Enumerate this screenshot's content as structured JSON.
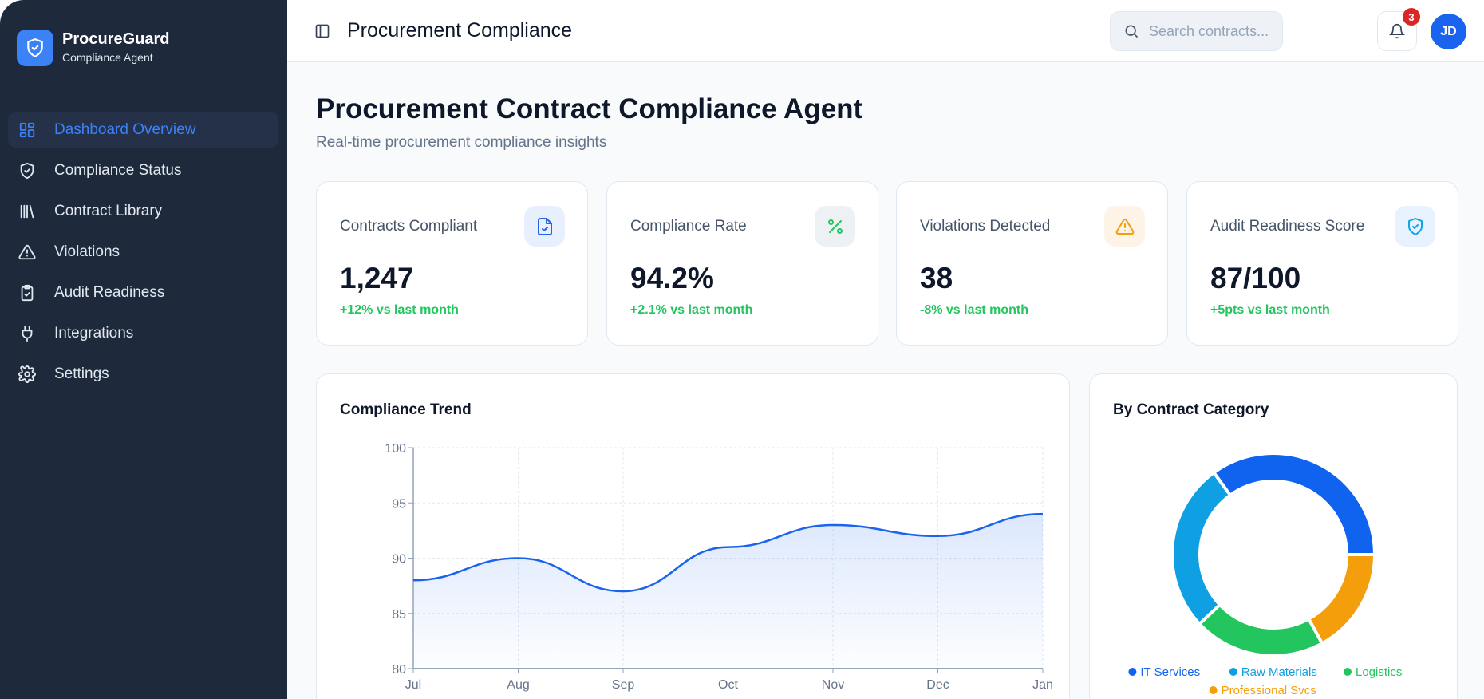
{
  "sidebar": {
    "brand": "ProcureGuard",
    "brand_sub": "Compliance Agent",
    "items": [
      {
        "label": "Dashboard Overview",
        "icon": "dashboard-icon",
        "active": true
      },
      {
        "label": "Compliance Status",
        "icon": "shield-check-icon"
      },
      {
        "label": "Contract Library",
        "icon": "library-icon"
      },
      {
        "label": "Violations",
        "icon": "warning-icon"
      },
      {
        "label": "Audit Readiness",
        "icon": "clipboard-check-icon"
      },
      {
        "label": "Integrations",
        "icon": "plug-icon"
      },
      {
        "label": "Settings",
        "icon": "gear-icon"
      }
    ]
  },
  "header": {
    "title": "Procurement Compliance",
    "search_placeholder": "Search contracts...",
    "notifications": "3",
    "avatar": "JD"
  },
  "page": {
    "title": "Procurement Contract Compliance Agent",
    "subtitle": "Real-time procurement compliance insights"
  },
  "kpis": [
    {
      "label": "Contracts Compliant",
      "value": "1,247",
      "delta": "+12% vs last month",
      "icon": "file-check-icon",
      "color": "#2563eb",
      "bg": "#e8efff"
    },
    {
      "label": "Compliance Rate",
      "value": "94.2%",
      "delta": "+2.1% vs last month",
      "icon": "percent-icon",
      "color": "#22c55e",
      "bg": "#eef1f3"
    },
    {
      "label": "Violations Detected",
      "value": "38",
      "delta": "-8% vs last month",
      "icon": "warning-icon",
      "color": "#f59e0b",
      "bg": "#fdf3e7"
    },
    {
      "label": "Audit Readiness Score",
      "value": "87/100",
      "delta": "+5pts vs last month",
      "icon": "shield-check-icon",
      "color": "#0ea5e9",
      "bg": "#e8f1fe"
    }
  ],
  "chart_data": [
    {
      "type": "area",
      "title": "Compliance Trend",
      "categories": [
        "Jul",
        "Aug",
        "Sep",
        "Oct",
        "Nov",
        "Dec",
        "Jan"
      ],
      "values": [
        88,
        90,
        87,
        91,
        93,
        92,
        94
      ],
      "ylim": [
        80,
        100
      ],
      "yticks": [
        80,
        85,
        90,
        95,
        100
      ],
      "grid": true,
      "color": "#1a63ee"
    },
    {
      "type": "pie",
      "title": "By Contract Category",
      "donut": true,
      "legend": "bottom",
      "series": [
        {
          "name": "IT Services",
          "value": 35,
          "color": "#1063ef"
        },
        {
          "name": "Raw Materials",
          "value": 27,
          "color": "#0ea0e3"
        },
        {
          "name": "Logistics",
          "value": 21,
          "color": "#22c55e"
        },
        {
          "name": "Professional Svcs",
          "value": 17,
          "color": "#f59e0b"
        }
      ]
    }
  ]
}
